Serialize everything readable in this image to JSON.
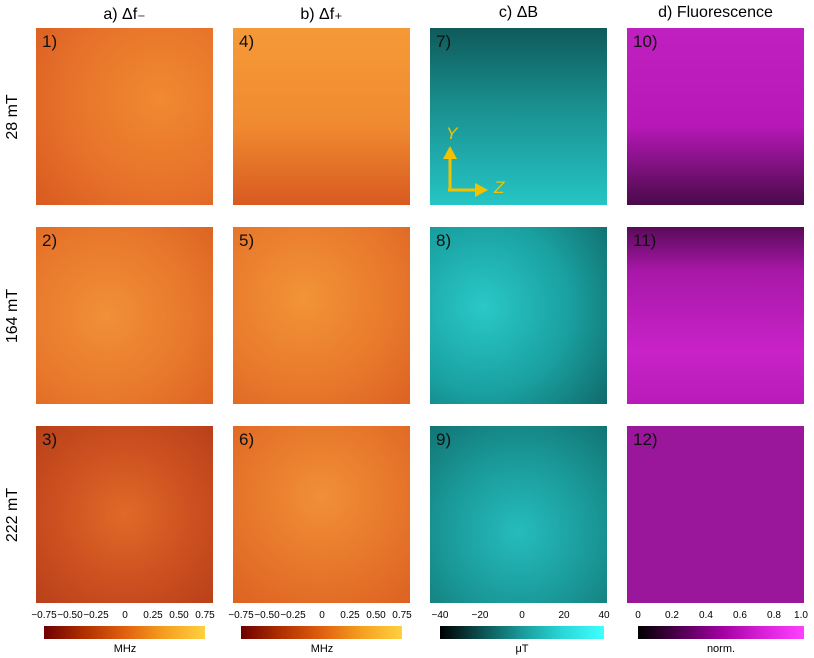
{
  "columns": [
    {
      "title": "a) Δf₋"
    },
    {
      "title": "b) Δf₊"
    },
    {
      "title": "c) ΔB"
    },
    {
      "title": "d) Fluorescence"
    }
  ],
  "rows": [
    {
      "label": "28 mT"
    },
    {
      "label": "164 mT"
    },
    {
      "label": "222 mT"
    }
  ],
  "panel_numbers": [
    "1)",
    "2)",
    "3)",
    "4)",
    "5)",
    "6)",
    "7)",
    "8)",
    "9)",
    "10)",
    "11)",
    "12)"
  ],
  "axes": {
    "y": "Y",
    "z": "Z"
  },
  "colorbars": [
    {
      "ticks": [
        "−0.75",
        "−0.50",
        "−0.25",
        "0",
        "0.25",
        "0.50",
        "0.75"
      ],
      "unit": "MHz",
      "colors": [
        "#6e0000",
        "#b03000",
        "#e06010",
        "#f5a020",
        "#ffd040"
      ]
    },
    {
      "ticks": [
        "−0.75",
        "−0.50",
        "−0.25",
        "0",
        "0.25",
        "0.50",
        "0.75"
      ],
      "unit": "MHz",
      "colors": [
        "#6e0000",
        "#b03000",
        "#e06010",
        "#f5a020",
        "#ffd040"
      ]
    },
    {
      "ticks": [
        "−40",
        "−20",
        "0",
        "20",
        "40"
      ],
      "unit": "μT",
      "colors": [
        "#000000",
        "#0c5050",
        "#1a9a9a",
        "#2ad8d8",
        "#40ffff"
      ]
    },
    {
      "ticks": [
        "0",
        "0.2",
        "0.4",
        "0.6",
        "0.8",
        "1.0"
      ],
      "unit": "norm.",
      "colors": [
        "#000000",
        "#500050",
        "#a000a0",
        "#d820d8",
        "#ff40ff"
      ]
    }
  ],
  "panel_colors": {
    "orange": "#ee7a2a",
    "cyan": "#22bcbc",
    "magenta": "#c41ec4"
  }
}
